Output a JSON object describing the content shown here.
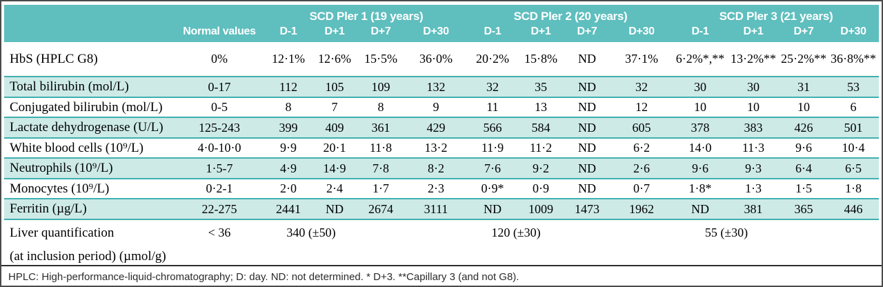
{
  "table": {
    "normal_values_header": "Normal values",
    "groups": [
      {
        "label": "SCD Pler 1 (19 years)"
      },
      {
        "label": "SCD Pler 2 (20 years)"
      },
      {
        "label": "SCD Pler 3 (21 years)"
      }
    ],
    "day_headers": [
      "D-1",
      "D+1",
      "D+7",
      "D+30"
    ],
    "rows": [
      {
        "label": "HbS (HPLC G8)",
        "normal": "0%",
        "values": [
          "12·1%",
          "12·6%",
          "15·5%",
          "36·0%",
          "20·2%",
          "15·8%",
          "ND",
          "37·1%",
          "6·2%*,**",
          "13·2%**",
          "25·2%**",
          "36·8%**"
        ]
      },
      {
        "label": "Total bilirubin (mol/L)",
        "normal": "0-17",
        "values": [
          "112",
          "105",
          "109",
          "132",
          "32",
          "35",
          "ND",
          "32",
          "30",
          "30",
          "31",
          "53"
        ]
      },
      {
        "label": "Conjugated bilirubin (mol/L)",
        "normal": "0-5",
        "values": [
          "8",
          "7",
          "8",
          "9",
          "11",
          "13",
          "ND",
          "12",
          "10",
          "10",
          "10",
          "6"
        ]
      },
      {
        "label": "Lactate dehydrogenase (U/L)",
        "normal": "125-243",
        "values": [
          "399",
          "409",
          "361",
          "429",
          "566",
          "584",
          "ND",
          "605",
          "378",
          "383",
          "426",
          "501"
        ]
      },
      {
        "label": "White blood cells (10⁹/L)",
        "normal": "4·0-10·0",
        "values": [
          "9·9",
          "20·1",
          "11·8",
          "13·2",
          "11·9",
          "11·2",
          "ND",
          "6·2",
          "14·0",
          "11·3",
          "9·6",
          "10·4"
        ]
      },
      {
        "label": "Neutrophils (10⁹/L)",
        "normal": "1·5-7",
        "values": [
          "4·9",
          "14·9",
          "7·8",
          "8·2",
          "7·6",
          "9·2",
          "ND",
          "2·6",
          "9·6",
          "9·3",
          "6·4",
          "6·5"
        ]
      },
      {
        "label": "Monocytes (10⁹/L)",
        "normal": "0·2-1",
        "values": [
          "2·0",
          "2·4",
          "1·7",
          "2·3",
          "0·9*",
          "0·9",
          "ND",
          "0·7",
          "1·8*",
          "1·3",
          "1·5",
          "1·8"
        ]
      },
      {
        "label": "Ferritin (µg/L)",
        "normal": "22-275",
        "values": [
          "2441",
          "ND",
          "2674",
          "3111",
          "ND",
          "1009",
          "1473",
          "1962",
          "ND",
          "381",
          "365",
          "446"
        ]
      }
    ],
    "liver_row": {
      "label_line1": "Liver quantification",
      "label_line2": "(at inclusion period) (µmol/g)",
      "normal": "< 36",
      "values": [
        "340 (±50)",
        "120 (±30)",
        "55 (±30)"
      ]
    },
    "footnote": "HPLC: High-performance-liquid-chromatography; D: day. ND: not determined. * D+3. **Capillary 3 (and not G8)."
  },
  "colors": {
    "header_teal": "#5FBEBE",
    "row_teal": "#CDEAE7",
    "row_border_teal": "#3FAFAF",
    "outer_border": "#4A4A4A",
    "header_text": "#FFFFFF"
  }
}
